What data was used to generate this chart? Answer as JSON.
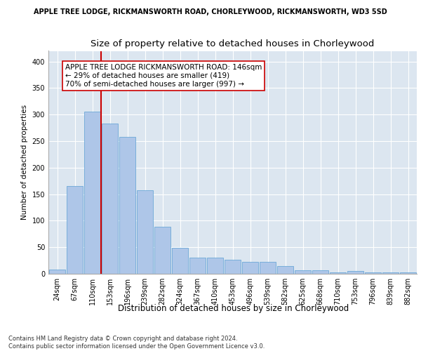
{
  "suptitle": "APPLE TREE LODGE, RICKMANSWORTH ROAD, CHORLEYWOOD, RICKMANSWORTH, WD3 5SD",
  "title": "Size of property relative to detached houses in Chorleywood",
  "xlabel": "Distribution of detached houses by size in Chorleywood",
  "ylabel": "Number of detached properties",
  "categories": [
    "24sqm",
    "67sqm",
    "110sqm",
    "153sqm",
    "196sqm",
    "239sqm",
    "282sqm",
    "324sqm",
    "367sqm",
    "410sqm",
    "453sqm",
    "496sqm",
    "539sqm",
    "582sqm",
    "625sqm",
    "668sqm",
    "710sqm",
    "753sqm",
    "796sqm",
    "839sqm",
    "882sqm"
  ],
  "values": [
    8,
    165,
    305,
    283,
    258,
    158,
    88,
    49,
    30,
    30,
    26,
    22,
    22,
    14,
    7,
    6,
    3,
    5,
    3,
    3,
    3
  ],
  "bar_color": "#aec6e8",
  "bar_edge_color": "#5a9fd4",
  "vertical_line_x": 2.5,
  "vline_color": "#cc0000",
  "annotation_text": "APPLE TREE LODGE RICKMANSWORTH ROAD: 146sqm\n← 29% of detached houses are smaller (419)\n70% of semi-detached houses are larger (997) →",
  "annotation_box_color": "#ffffff",
  "annotation_box_edge": "#cc0000",
  "ylim": [
    0,
    420
  ],
  "yticks": [
    0,
    50,
    100,
    150,
    200,
    250,
    300,
    350,
    400
  ],
  "background_color": "#dce6f0",
  "footnote": "Contains HM Land Registry data © Crown copyright and database right 2024.\nContains public sector information licensed under the Open Government Licence v3.0.",
  "suptitle_fontsize": 7.0,
  "title_fontsize": 9.5,
  "xlabel_fontsize": 8.5,
  "ylabel_fontsize": 7.5,
  "tick_fontsize": 7.0,
  "annotation_fontsize": 7.5,
  "footnote_fontsize": 6.0
}
